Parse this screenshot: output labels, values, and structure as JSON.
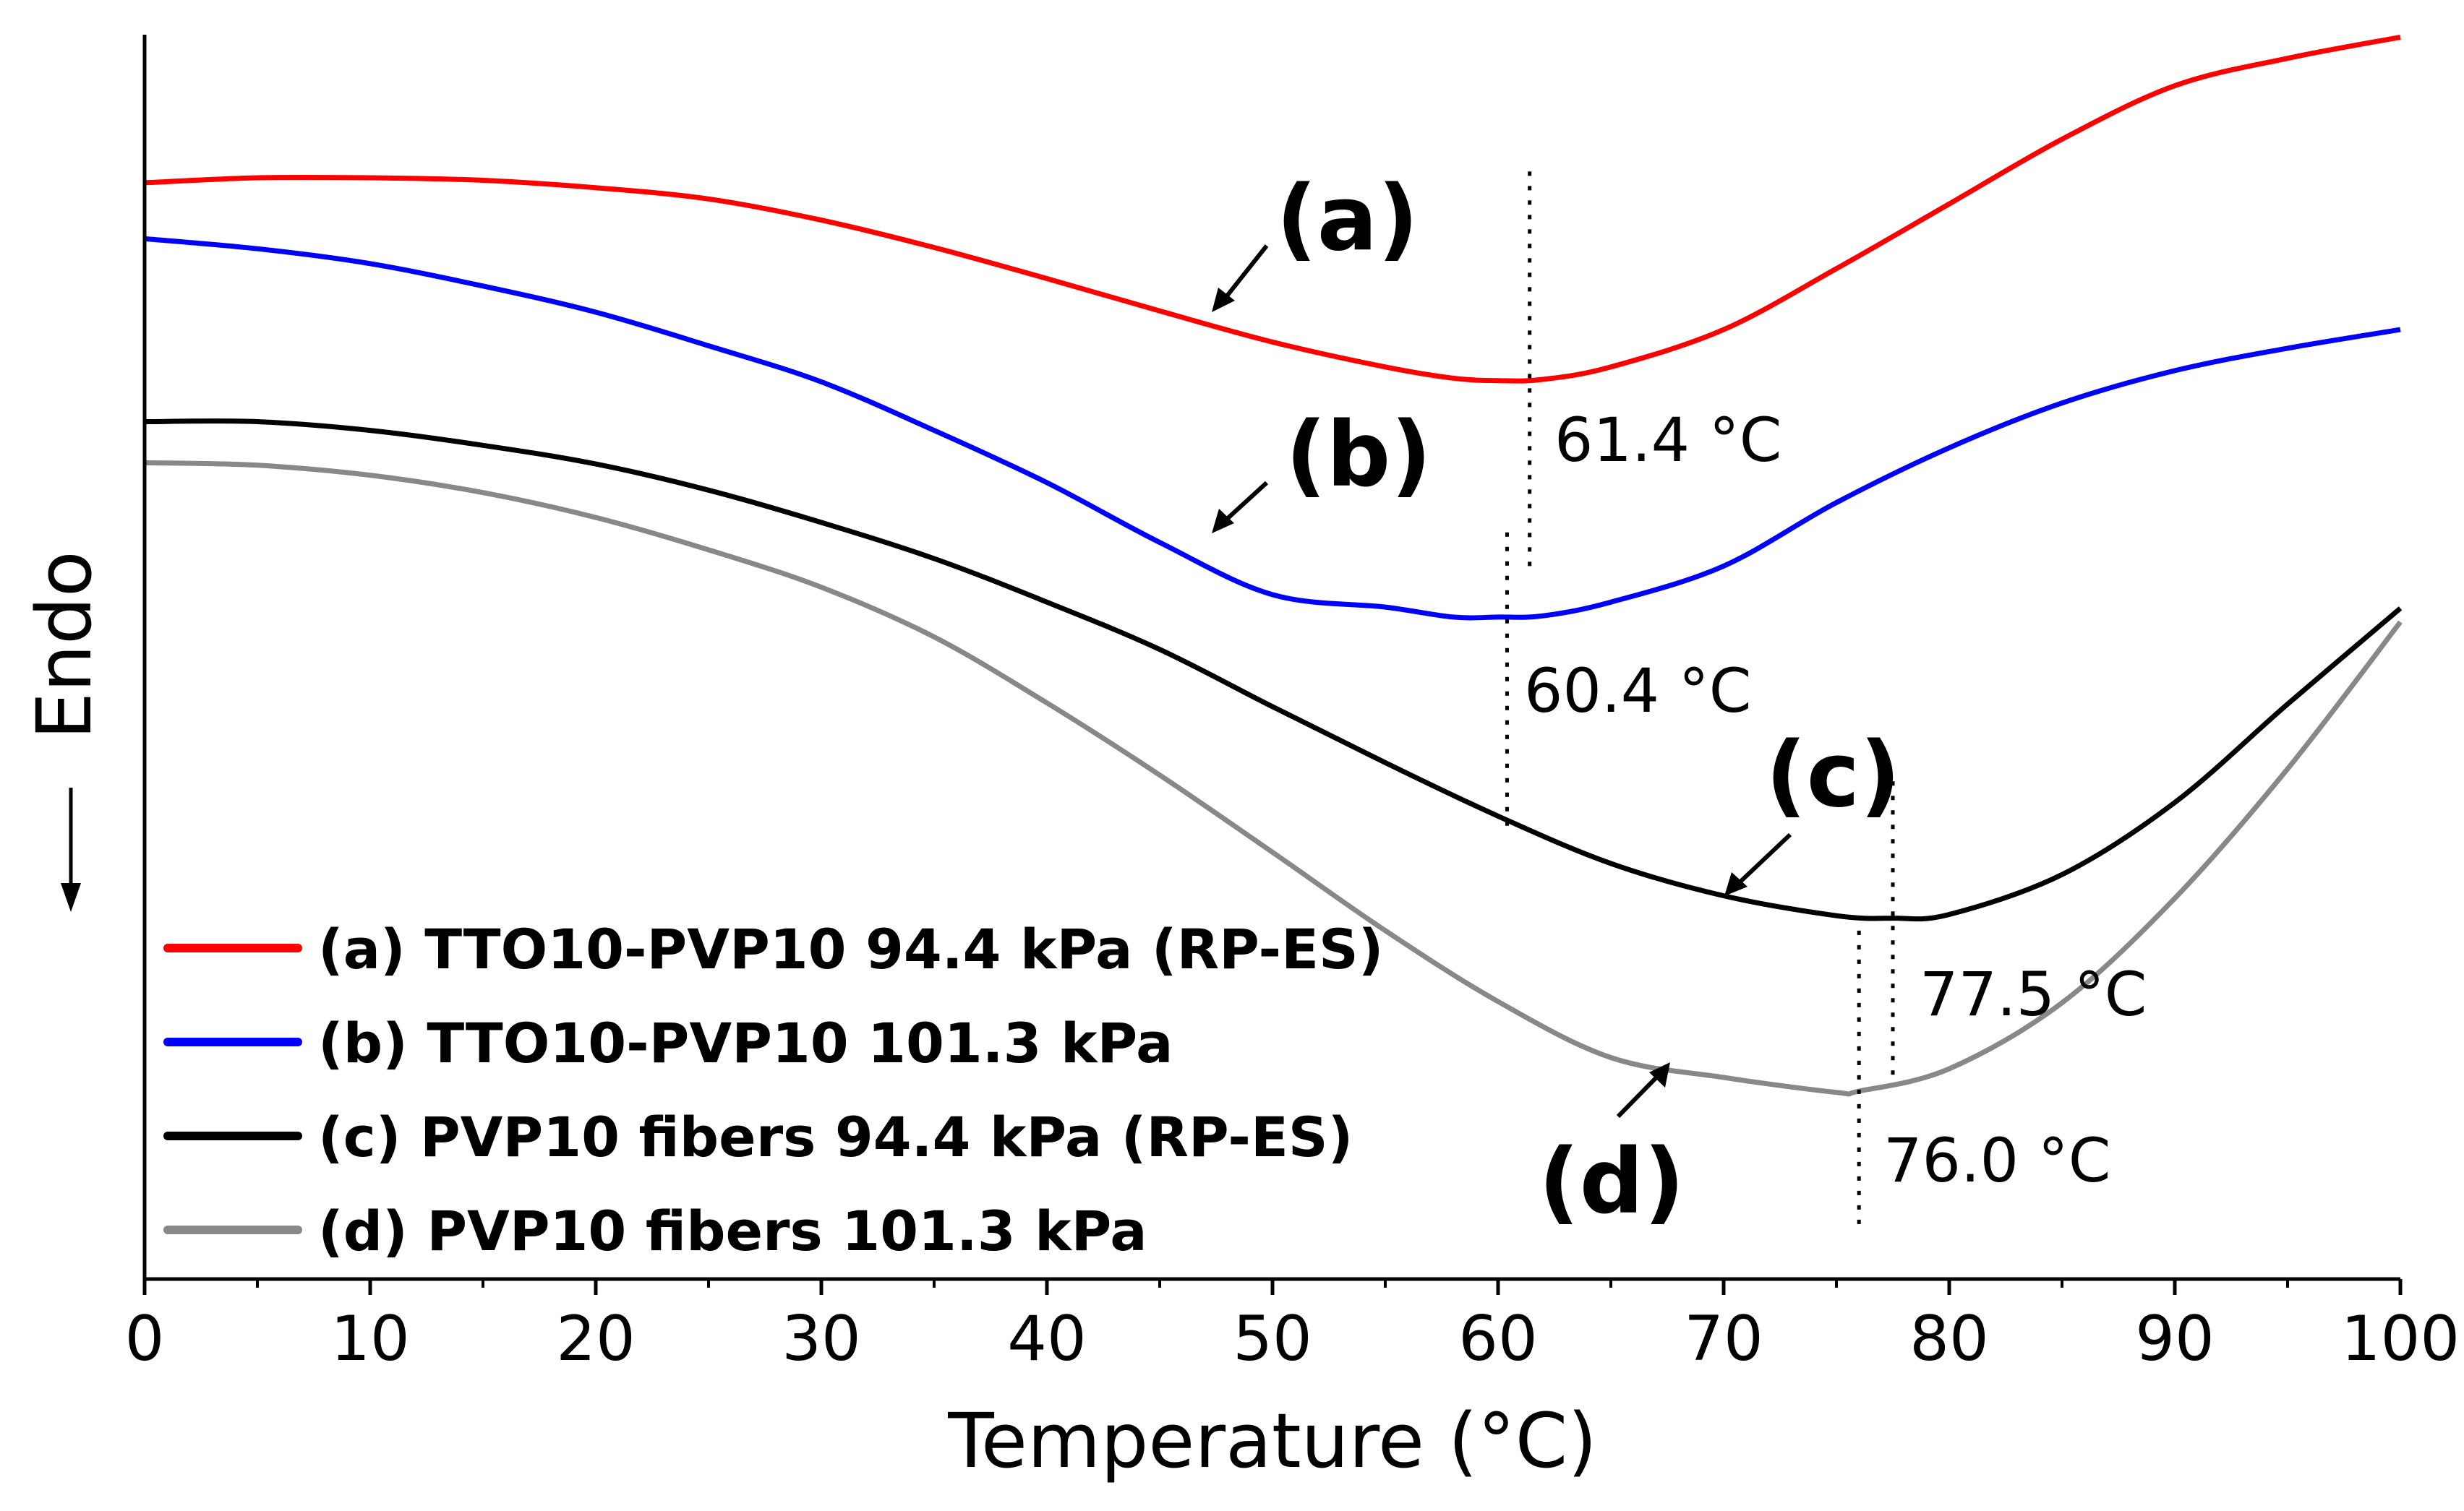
{
  "chart_data": {
    "type": "line",
    "title": "",
    "xlabel": "Temperature (°C)",
    "ylabel": "Endo",
    "xlim": [
      0,
      100
    ],
    "ylim": [
      0,
      100
    ],
    "y_ticks_shown": false,
    "grid": false,
    "legend_position": "bottom-left",
    "x_ticks": [
      "0",
      "10",
      "20",
      "30",
      "40",
      "50",
      "60",
      "70",
      "80",
      "90",
      "100"
    ],
    "series": [
      {
        "name": "(a) TTO10-PVP10 94.4 kPa (RP-ES)",
        "label": "(a)",
        "color": "#ff0000",
        "x": [
          0,
          5,
          10,
          15,
          20,
          25,
          30,
          35,
          40,
          45,
          50,
          55,
          58,
          60,
          62,
          65,
          70,
          75,
          80,
          85,
          90,
          95,
          100
        ],
        "y": [
          88.1,
          88.5,
          88.5,
          88.3,
          87.7,
          86.8,
          85.1,
          82.9,
          80.4,
          77.8,
          75.3,
          73.3,
          72.4,
          72.2,
          72.3,
          73.3,
          76.3,
          81.2,
          86.4,
          91.6,
          95.9,
          98.1,
          99.8
        ],
        "peak": {
          "x": 61.4,
          "label": "61.4 °C"
        }
      },
      {
        "name": "(b) TTO10-PVP10 101.3 kPa",
        "label": "(b)",
        "color": "#0000ff",
        "x": [
          0,
          5,
          10,
          15,
          20,
          25,
          30,
          35,
          40,
          45,
          50,
          55,
          58,
          60,
          62,
          65,
          70,
          75,
          80,
          85,
          90,
          95,
          100
        ],
        "y": [
          83.6,
          82.8,
          81.6,
          79.8,
          77.7,
          75.0,
          72.1,
          68.2,
          64.0,
          59.2,
          55.0,
          54.0,
          53.2,
          53.2,
          53.3,
          54.4,
          57.3,
          62.4,
          66.8,
          70.4,
          73.0,
          74.8,
          76.3
        ]
      },
      {
        "name": "(c) PVP10 fibers 94.4 kPa (RP-ES)",
        "label": "(c)",
        "color": "#000000",
        "x": [
          0,
          5,
          10,
          15,
          20,
          25,
          30,
          35,
          40,
          45,
          50,
          55,
          60,
          65,
          70,
          75,
          77.5,
          80,
          85,
          90,
          95,
          100
        ],
        "y": [
          68.9,
          68.9,
          68.2,
          67.0,
          65.5,
          63.4,
          60.8,
          57.9,
          54.4,
          50.6,
          46.0,
          41.5,
          37.2,
          33.4,
          30.8,
          29.2,
          29.0,
          29.3,
          32.5,
          38.3,
          46.2,
          53.9
        ],
        "peak": {
          "x": 77.5,
          "label": "77.5 °C"
        }
      },
      {
        "name": "(d) PVP10 fibers 101.3 kPa",
        "label": "(d)",
        "color": "#888888",
        "x": [
          0,
          5,
          10,
          15,
          20,
          25,
          30,
          35,
          40,
          45,
          50,
          55,
          60,
          65,
          70,
          75,
          76,
          80,
          85,
          90,
          95,
          100
        ],
        "y": [
          65.6,
          65.4,
          64.6,
          63.2,
          61.2,
          58.6,
          55.6,
          51.6,
          46.3,
          40.5,
          34.3,
          28.0,
          22.3,
          17.8,
          16.2,
          15.0,
          15.1,
          16.9,
          22.2,
          30.6,
          41.0,
          52.8
        ],
        "peak": {
          "x": 76.0,
          "label": "76.0 °C"
        }
      }
    ],
    "annotations": [
      {
        "text": "60.4 °C",
        "x": 60.4,
        "series": "(b)"
      }
    ]
  }
}
